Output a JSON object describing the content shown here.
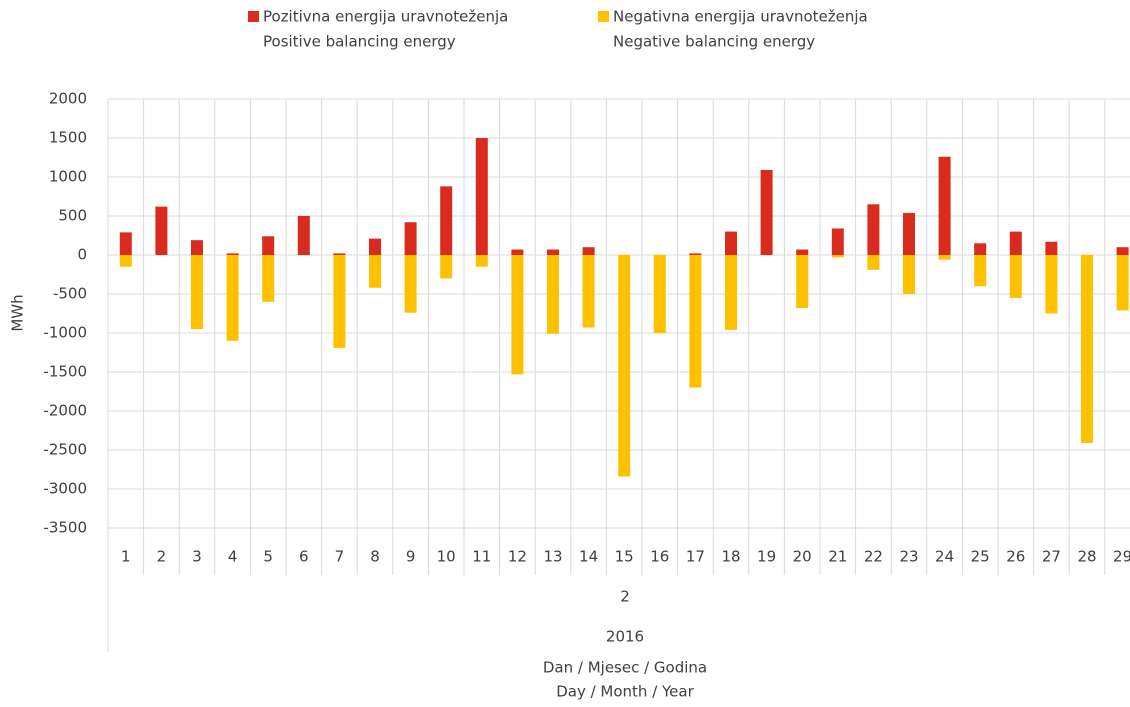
{
  "chart_data": {
    "type": "bar",
    "categories": [
      "1",
      "2",
      "3",
      "4",
      "5",
      "6",
      "7",
      "8",
      "9",
      "10",
      "11",
      "12",
      "13",
      "14",
      "15",
      "16",
      "17",
      "18",
      "19",
      "20",
      "21",
      "22",
      "23",
      "24",
      "25",
      "26",
      "27",
      "28",
      "29"
    ],
    "month": "2",
    "year": "2016",
    "series": [
      {
        "name": "Pozitivna energija uravnoteženja",
        "name_en": "Positive balancing energy",
        "color": "#d92b1e",
        "values": [
          290,
          620,
          190,
          20,
          240,
          500,
          20,
          210,
          420,
          880,
          1500,
          70,
          70,
          100,
          0,
          0,
          20,
          300,
          1090,
          70,
          340,
          650,
          540,
          1260,
          150,
          300,
          170,
          0,
          100
        ]
      },
      {
        "name": "Negativna energija uravnoteženja",
        "name_en": "Negative balancing energy",
        "color": "#ffc000",
        "values": [
          -150,
          0,
          -950,
          -1100,
          -600,
          0,
          -1190,
          -420,
          -740,
          -300,
          -150,
          -1530,
          -1010,
          -930,
          -2840,
          -1000,
          -1700,
          -960,
          0,
          -680,
          -30,
          -190,
          -500,
          -60,
          -400,
          -550,
          -750,
          -2410,
          -710
        ]
      }
    ],
    "y_label": "MWh",
    "x_label": [
      "Dan / Mjesec / Godina",
      "Day / Month / Year"
    ],
    "ylim": [
      -3500,
      2000
    ],
    "yticks": [
      -3500,
      -3000,
      -2500,
      -2000,
      -1500,
      -1000,
      -500,
      0,
      500,
      1000,
      1500,
      2000
    ],
    "grid": true
  }
}
